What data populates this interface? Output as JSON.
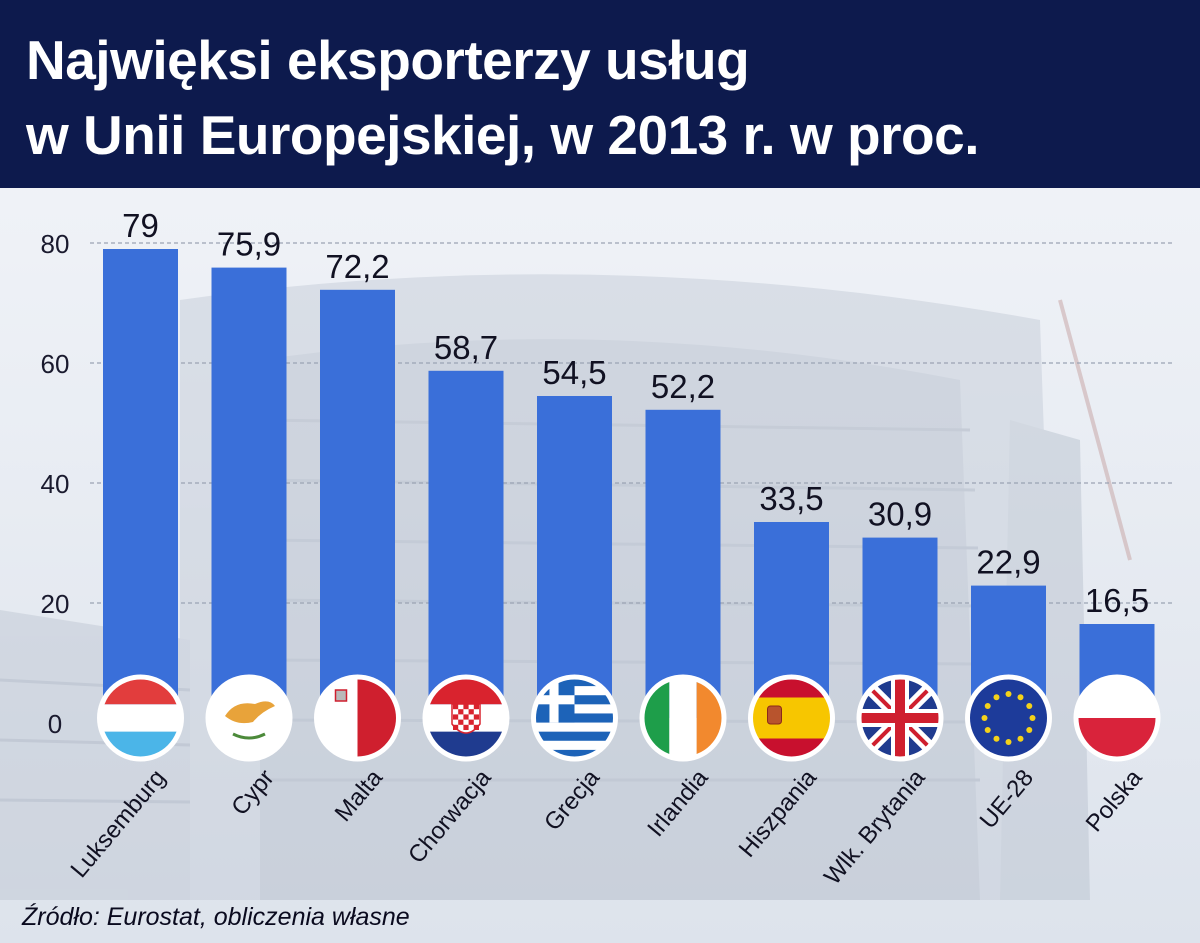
{
  "chart_data": {
    "type": "bar",
    "title": "Najwięksi eksporterzy usług w Unii Europejskiej, w 2013 r. w proc.",
    "title_lines": [
      "Najwięksi eksporterzy usług",
      "w Unii Europejskiej, w 2013 r. w proc."
    ],
    "categories": [
      "Luksemburg",
      "Cypr",
      "Malta",
      "Chorwacja",
      "Grecja",
      "Irlandia",
      "Hiszpania",
      "Wlk. Brytania",
      "UE-28",
      "Polska"
    ],
    "values": [
      79,
      75.9,
      72.2,
      58.7,
      54.5,
      52.2,
      33.5,
      30.9,
      22.9,
      16.5
    ],
    "value_labels": [
      "79",
      "75,9",
      "72,2",
      "58,7",
      "54,5",
      "52,2",
      "33,5",
      "30,9",
      "22,9",
      "16,5"
    ],
    "ylim": [
      0,
      80
    ],
    "yticks": [
      0,
      20,
      40,
      60,
      80
    ],
    "grid": true,
    "xlabel": "",
    "ylabel": "",
    "bar_color": "#3a6fd9",
    "flags": [
      "flag-luxembourg-icon",
      "flag-cyprus-icon",
      "flag-malta-icon",
      "flag-croatia-icon",
      "flag-greece-icon",
      "flag-ireland-icon",
      "flag-spain-icon",
      "flag-united-kingdom-icon",
      "flag-eu-icon",
      "flag-poland-icon"
    ]
  },
  "header": {
    "background_color": "#0d1a4d"
  },
  "source": "Źródło: Eurostat, obliczenia własne"
}
